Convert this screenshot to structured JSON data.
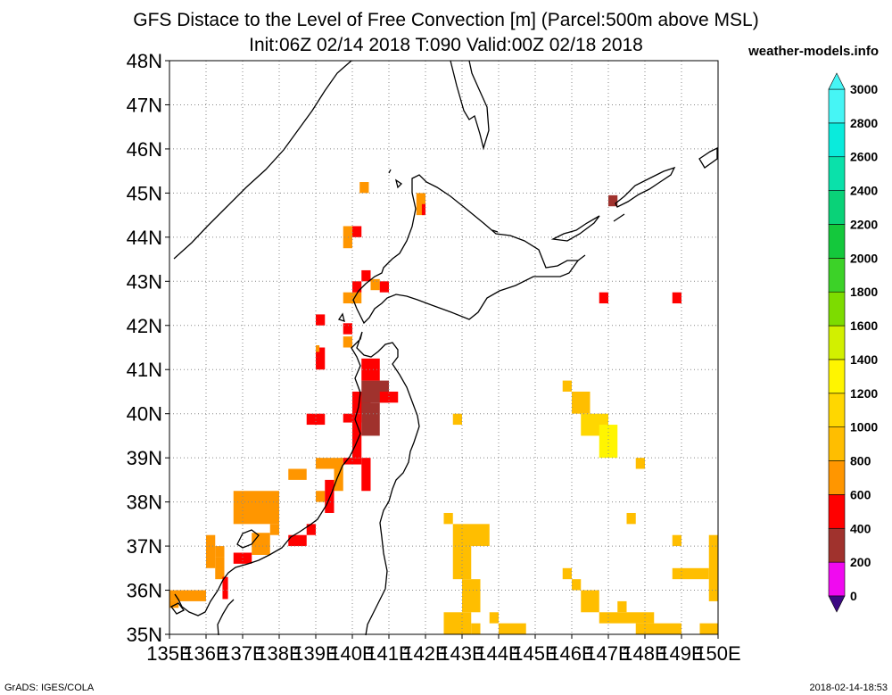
{
  "title_line1": "GFS Distace to the Level of Free Convection [m] (Parcel:500m above MSL)",
  "title_line2": "Init:06Z 02/14 2018 T:090 Valid:00Z 02/18 2018",
  "site": "weather-models.info",
  "footer_left": "GrADS: IGES/COLA",
  "footer_right": "2018-02-14-18:53",
  "chart_data": {
    "type": "heatmap",
    "title": "GFS Distace to the Level of Free Convection [m] (Parcel:500m above MSL)",
    "subtitle": "Init:06Z 02/14 2018 T:090 Valid:00Z 02/18 2018",
    "xlim": [
      135,
      150
    ],
    "ylim": [
      35,
      48
    ],
    "x_ticks": [
      "135E",
      "136E",
      "137E",
      "138E",
      "139E",
      "140E",
      "141E",
      "142E",
      "143E",
      "144E",
      "145E",
      "146E",
      "147E",
      "148E",
      "149E",
      "150E"
    ],
    "y_ticks": [
      "35N",
      "36N",
      "37N",
      "38N",
      "39N",
      "40N",
      "41N",
      "42N",
      "43N",
      "44N",
      "45N",
      "46N",
      "47N",
      "48N"
    ],
    "grid": true,
    "colorbar": {
      "labels": [
        "0",
        "200",
        "400",
        "600",
        "800",
        "1000",
        "1200",
        "1400",
        "1600",
        "1800",
        "2000",
        "2200",
        "2400",
        "2600",
        "2800",
        "3000"
      ],
      "colors": [
        "#3c0a82",
        "#f00af0",
        "#a0322d",
        "#ff0000",
        "#ff9600",
        "#ffbe00",
        "#ffd700",
        "#fff500",
        "#d2f000",
        "#7ddc00",
        "#3cd228",
        "#14c83c",
        "#0ad278",
        "#0ae1aa",
        "#0aebdc",
        "#46f5f5"
      ]
    },
    "cells": [
      {
        "lon": 135.0,
        "lat": 35.75,
        "w": 1.0,
        "h": 0.25,
        "v": 900
      },
      {
        "lon": 135.0,
        "lat": 35.6,
        "w": 0.25,
        "h": 0.15,
        "v": 900
      },
      {
        "lon": 136.0,
        "lat": 36.5,
        "w": 0.25,
        "h": 0.75,
        "v": 900
      },
      {
        "lon": 136.25,
        "lat": 36.25,
        "w": 0.25,
        "h": 0.5,
        "v": 900
      },
      {
        "lon": 136.25,
        "lat": 36.75,
        "w": 0.25,
        "h": 0.25,
        "v": 900
      },
      {
        "lon": 136.45,
        "lat": 35.8,
        "w": 0.15,
        "h": 0.5,
        "v": 650
      },
      {
        "lon": 136.75,
        "lat": 36.6,
        "w": 0.5,
        "h": 0.25,
        "v": 650
      },
      {
        "lon": 137.25,
        "lat": 36.8,
        "w": 0.5,
        "h": 0.5,
        "v": 900
      },
      {
        "lon": 136.75,
        "lat": 37.5,
        "w": 1.25,
        "h": 0.75,
        "v": 900
      },
      {
        "lon": 137.75,
        "lat": 37.25,
        "w": 0.25,
        "h": 0.25,
        "v": 900
      },
      {
        "lon": 138.25,
        "lat": 37.0,
        "w": 0.5,
        "h": 0.25,
        "v": 650
      },
      {
        "lon": 138.75,
        "lat": 37.25,
        "w": 0.25,
        "h": 0.25,
        "v": 650
      },
      {
        "lon": 138.25,
        "lat": 38.5,
        "w": 0.5,
        "h": 0.25,
        "v": 900
      },
      {
        "lon": 139.0,
        "lat": 38.0,
        "w": 0.25,
        "h": 0.25,
        "v": 900
      },
      {
        "lon": 139.25,
        "lat": 37.75,
        "w": 0.25,
        "h": 0.75,
        "v": 650
      },
      {
        "lon": 139.0,
        "lat": 38.75,
        "w": 0.75,
        "h": 0.25,
        "v": 900
      },
      {
        "lon": 139.5,
        "lat": 38.25,
        "w": 0.25,
        "h": 0.5,
        "v": 900
      },
      {
        "lon": 139.75,
        "lat": 38.85,
        "w": 0.5,
        "h": 0.15,
        "v": 650
      },
      {
        "lon": 140.0,
        "lat": 39.0,
        "w": 0.25,
        "h": 1.0,
        "v": 650
      },
      {
        "lon": 140.0,
        "lat": 40.0,
        "w": 0.5,
        "h": 0.5,
        "v": 650
      },
      {
        "lon": 140.25,
        "lat": 39.5,
        "w": 0.5,
        "h": 0.75,
        "v": 500
      },
      {
        "lon": 140.25,
        "lat": 40.25,
        "w": 0.75,
        "h": 0.5,
        "v": 500
      },
      {
        "lon": 140.25,
        "lat": 40.75,
        "w": 0.5,
        "h": 0.5,
        "v": 650
      },
      {
        "lon": 140.25,
        "lat": 38.25,
        "w": 0.25,
        "h": 0.75,
        "v": 650
      },
      {
        "lon": 140.75,
        "lat": 40.25,
        "w": 0.5,
        "h": 0.25,
        "v": 650
      },
      {
        "lon": 139.75,
        "lat": 39.8,
        "w": 0.5,
        "h": 0.2,
        "v": 650
      },
      {
        "lon": 138.75,
        "lat": 39.75,
        "w": 0.5,
        "h": 0.25,
        "v": 650
      },
      {
        "lon": 139.0,
        "lat": 41.0,
        "w": 0.25,
        "h": 0.5,
        "v": 650
      },
      {
        "lon": 139.0,
        "lat": 42.0,
        "w": 0.25,
        "h": 0.25,
        "v": 650
      },
      {
        "lon": 139.0,
        "lat": 41.4,
        "w": 0.1,
        "h": 0.15,
        "v": 900
      },
      {
        "lon": 139.75,
        "lat": 42.5,
        "w": 0.5,
        "h": 0.25,
        "v": 900
      },
      {
        "lon": 139.75,
        "lat": 41.8,
        "w": 0.25,
        "h": 0.25,
        "v": 650
      },
      {
        "lon": 140.0,
        "lat": 42.75,
        "w": 0.25,
        "h": 0.25,
        "v": 650
      },
      {
        "lon": 140.25,
        "lat": 43.0,
        "w": 0.25,
        "h": 0.25,
        "v": 650
      },
      {
        "lon": 140.5,
        "lat": 42.8,
        "w": 0.25,
        "h": 0.25,
        "v": 900
      },
      {
        "lon": 140.75,
        "lat": 42.75,
        "w": 0.25,
        "h": 0.25,
        "v": 650
      },
      {
        "lon": 139.75,
        "lat": 43.75,
        "w": 0.25,
        "h": 0.5,
        "v": 900
      },
      {
        "lon": 140.0,
        "lat": 44.0,
        "w": 0.25,
        "h": 0.25,
        "v": 650
      },
      {
        "lon": 140.2,
        "lat": 45.0,
        "w": 0.25,
        "h": 0.25,
        "v": 900
      },
      {
        "lon": 141.75,
        "lat": 44.5,
        "w": 0.25,
        "h": 0.5,
        "v": 900
      },
      {
        "lon": 141.9,
        "lat": 44.5,
        "w": 0.1,
        "h": 0.25,
        "v": 650
      },
      {
        "lon": 139.75,
        "lat": 41.5,
        "w": 0.25,
        "h": 0.25,
        "v": 900
      },
      {
        "lon": 147.0,
        "lat": 44.7,
        "w": 0.25,
        "h": 0.25,
        "v": 500
      },
      {
        "lon": 146.75,
        "lat": 42.5,
        "w": 0.25,
        "h": 0.25,
        "v": 650
      },
      {
        "lon": 148.75,
        "lat": 42.5,
        "w": 0.25,
        "h": 0.25,
        "v": 650
      },
      {
        "lon": 145.75,
        "lat": 40.5,
        "w": 0.25,
        "h": 0.25,
        "v": 1100
      },
      {
        "lon": 146.0,
        "lat": 40.0,
        "w": 0.5,
        "h": 0.5,
        "v": 1100
      },
      {
        "lon": 146.25,
        "lat": 39.5,
        "w": 0.75,
        "h": 0.5,
        "v": 1200
      },
      {
        "lon": 146.75,
        "lat": 39.0,
        "w": 0.5,
        "h": 0.75,
        "v": 1400
      },
      {
        "lon": 147.75,
        "lat": 38.75,
        "w": 0.25,
        "h": 0.25,
        "v": 1100
      },
      {
        "lon": 142.75,
        "lat": 39.75,
        "w": 0.25,
        "h": 0.25,
        "v": 1100
      },
      {
        "lon": 142.5,
        "lat": 37.5,
        "w": 0.25,
        "h": 0.25,
        "v": 1100
      },
      {
        "lon": 142.75,
        "lat": 37.0,
        "w": 1.0,
        "h": 0.5,
        "v": 1100
      },
      {
        "lon": 142.75,
        "lat": 36.25,
        "w": 0.5,
        "h": 0.75,
        "v": 1100
      },
      {
        "lon": 143.0,
        "lat": 35.5,
        "w": 0.5,
        "h": 0.75,
        "v": 1100
      },
      {
        "lon": 142.5,
        "lat": 35.0,
        "w": 0.75,
        "h": 0.5,
        "v": 1100
      },
      {
        "lon": 143.25,
        "lat": 35.0,
        "w": 0.25,
        "h": 0.25,
        "v": 1100
      },
      {
        "lon": 143.75,
        "lat": 35.25,
        "w": 0.25,
        "h": 0.25,
        "v": 1100
      },
      {
        "lon": 144.0,
        "lat": 35.0,
        "w": 0.75,
        "h": 0.25,
        "v": 1100
      },
      {
        "lon": 145.75,
        "lat": 36.25,
        "w": 0.25,
        "h": 0.25,
        "v": 1100
      },
      {
        "lon": 146.25,
        "lat": 35.5,
        "w": 0.5,
        "h": 0.5,
        "v": 1100
      },
      {
        "lon": 146.0,
        "lat": 36.0,
        "w": 0.25,
        "h": 0.25,
        "v": 1100
      },
      {
        "lon": 146.75,
        "lat": 35.25,
        "w": 1.5,
        "h": 0.25,
        "v": 1100
      },
      {
        "lon": 147.75,
        "lat": 35.0,
        "w": 1.25,
        "h": 0.25,
        "v": 1100
      },
      {
        "lon": 147.25,
        "lat": 35.5,
        "w": 0.25,
        "h": 0.25,
        "v": 1100
      },
      {
        "lon": 147.5,
        "lat": 37.5,
        "w": 0.25,
        "h": 0.25,
        "v": 1100
      },
      {
        "lon": 148.75,
        "lat": 37.0,
        "w": 0.25,
        "h": 0.25,
        "v": 1100
      },
      {
        "lon": 148.75,
        "lat": 36.25,
        "w": 1.0,
        "h": 0.25,
        "v": 1100
      },
      {
        "lon": 149.75,
        "lat": 35.75,
        "w": 0.25,
        "h": 1.5,
        "v": 1100
      },
      {
        "lon": 149.5,
        "lat": 35.0,
        "w": 0.5,
        "h": 0.25,
        "v": 1100
      }
    ]
  }
}
